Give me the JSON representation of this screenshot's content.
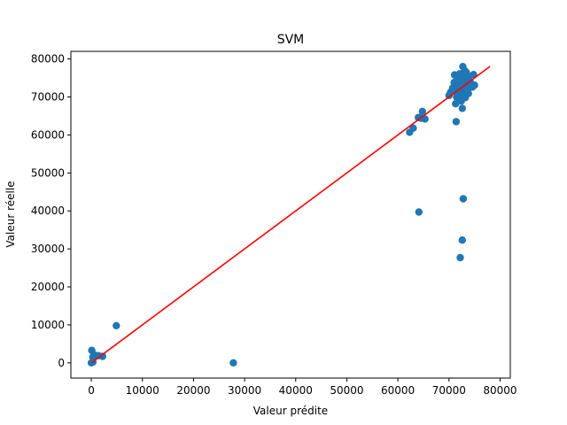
{
  "chart_data": {
    "type": "scatter",
    "title": "SVM",
    "xlabel": "Valeur prédite",
    "ylabel": "Valeur réelle",
    "xlim": [
      -4000,
      82000
    ],
    "ylim": [
      -4000,
      82000
    ],
    "x_ticks": [
      0,
      10000,
      20000,
      30000,
      40000,
      50000,
      60000,
      70000,
      80000
    ],
    "y_ticks": [
      0,
      10000,
      20000,
      30000,
      40000,
      50000,
      60000,
      70000,
      80000
    ],
    "x_tick_labels": [
      "0",
      "10000",
      "20000",
      "30000",
      "40000",
      "50000",
      "60000",
      "70000",
      "80000"
    ],
    "y_tick_labels": [
      "0",
      "10000",
      "20000",
      "30000",
      "40000",
      "50000",
      "60000",
      "70000",
      "80000"
    ],
    "grid": false,
    "point_color": "#1f77b4",
    "line_color": "#ff0000",
    "fit_line": {
      "x": [
        0,
        78000
      ],
      "y": [
        0,
        78000
      ]
    },
    "points": [
      [
        0,
        0
      ],
      [
        100,
        3300
      ],
      [
        300,
        1500
      ],
      [
        500,
        2200
      ],
      [
        900,
        1800
      ],
      [
        1400,
        1900
      ],
      [
        2200,
        1700
      ],
      [
        300,
        200
      ],
      [
        4900,
        9800
      ],
      [
        27800,
        0
      ],
      [
        64100,
        39700
      ],
      [
        72200,
        27700
      ],
      [
        72600,
        32300
      ],
      [
        72800,
        43200
      ],
      [
        62300,
        60700
      ],
      [
        63000,
        61800
      ],
      [
        64000,
        64600
      ],
      [
        64800,
        66200
      ],
      [
        65300,
        64200
      ],
      [
        64500,
        64400
      ],
      [
        70000,
        70400
      ],
      [
        70300,
        71200
      ],
      [
        70700,
        72300
      ],
      [
        71000,
        73800
      ],
      [
        71100,
        75800
      ],
      [
        71300,
        68200
      ],
      [
        71400,
        63500
      ],
      [
        71500,
        70000
      ],
      [
        71600,
        71400
      ],
      [
        71700,
        69000
      ],
      [
        71800,
        75200
      ],
      [
        71900,
        72800
      ],
      [
        72000,
        73600
      ],
      [
        72100,
        76100
      ],
      [
        72200,
        74200
      ],
      [
        72300,
        70600
      ],
      [
        72400,
        68900
      ],
      [
        72500,
        75700
      ],
      [
        72600,
        67000
      ],
      [
        72700,
        78000
      ],
      [
        72800,
        71800
      ],
      [
        72900,
        74900
      ],
      [
        73000,
        72200
      ],
      [
        73100,
        76900
      ],
      [
        73200,
        69800
      ],
      [
        73300,
        73500
      ],
      [
        73400,
        71100
      ],
      [
        73500,
        74600
      ],
      [
        73700,
        72000
      ],
      [
        73900,
        75300
      ],
      [
        74200,
        73900
      ],
      [
        74600,
        72600
      ],
      [
        74800,
        75900
      ],
      [
        75000,
        73100
      ],
      [
        72000,
        71000
      ],
      [
        72800,
        73000
      ],
      [
        71600,
        74600
      ],
      [
        73400,
        76400
      ],
      [
        72400,
        72400
      ],
      [
        73800,
        70900
      ]
    ]
  }
}
